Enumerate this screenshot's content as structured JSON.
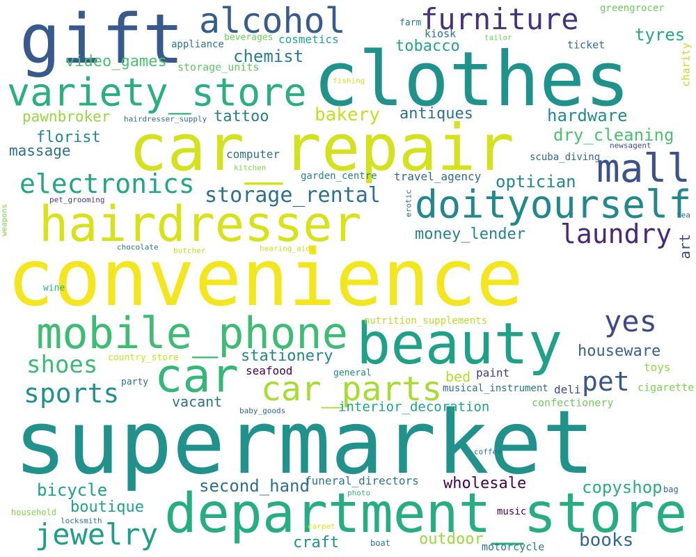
{
  "words": [
    {
      "text": "supermarket",
      "color": "#21918c"
    },
    {
      "text": "convenience",
      "color": "#f4e61e"
    },
    {
      "text": "clothes",
      "color": "#1f938b"
    },
    {
      "text": "car_repair",
      "color": "#d3e21c"
    },
    {
      "text": "gift",
      "color": "#38598c"
    },
    {
      "text": "beauty",
      "color": "#1fa187"
    },
    {
      "text": "department_store",
      "color": "#26ad81"
    },
    {
      "text": "hairdresser",
      "color": "#d8e219"
    },
    {
      "text": "car",
      "color": "#35b779"
    },
    {
      "text": "mobile_phone",
      "color": "#3ebc74"
    },
    {
      "text": "variety_store",
      "color": "#2ab07f"
    },
    {
      "text": "doityourself",
      "color": "#23888e"
    },
    {
      "text": "car_parts",
      "color": "#a8db34"
    },
    {
      "text": "mall",
      "color": "#3b528b"
    },
    {
      "text": "alcohol",
      "color": "#365c8d"
    },
    {
      "text": "electronics",
      "color": "#22a785"
    },
    {
      "text": "furniture",
      "color": "#46337e"
    },
    {
      "text": "jewelry",
      "color": "#1f9e89"
    },
    {
      "text": "yes",
      "color": "#3e4989"
    },
    {
      "text": "pet",
      "color": "#39568c"
    },
    {
      "text": "laundry",
      "color": "#482878"
    },
    {
      "text": "sports",
      "color": "#21918c"
    },
    {
      "text": "shoes",
      "color": "#3bbb75"
    },
    {
      "text": "storage_rental",
      "color": "#2c728e"
    },
    {
      "text": "second_hand",
      "color": "#2d718e"
    },
    {
      "text": "books",
      "color": "#31688e"
    },
    {
      "text": "bicycle",
      "color": "#1f9e89"
    },
    {
      "text": "hardware",
      "color": "#228c8d"
    },
    {
      "text": "dry_cleaning",
      "color": "#4ac16d"
    },
    {
      "text": "optician",
      "color": "#24868e"
    },
    {
      "text": "copyshop",
      "color": "#29af7f"
    },
    {
      "text": "chemist",
      "color": "#287d8e"
    },
    {
      "text": "bakery",
      "color": "#c2df23"
    },
    {
      "text": "boutique",
      "color": "#1fa287"
    },
    {
      "text": "craft",
      "color": "#21908d"
    },
    {
      "text": "outdoor",
      "color": "#9bd93c"
    },
    {
      "text": "tyres",
      "color": "#22a884"
    },
    {
      "text": "tobacco",
      "color": "#22a785"
    },
    {
      "text": "wholesale",
      "color": "#440154"
    },
    {
      "text": "stationery",
      "color": "#25848e"
    },
    {
      "text": "houseware",
      "color": "#33638d"
    },
    {
      "text": "interior_decoration",
      "color": "#20a486"
    },
    {
      "text": "antiques",
      "color": "#2c718e"
    },
    {
      "text": "tattoo",
      "color": "#297a8e"
    },
    {
      "text": "money_lender",
      "color": "#26828e"
    },
    {
      "text": "florist",
      "color": "#23898e"
    },
    {
      "text": "video_games",
      "color": "#4ac16d"
    },
    {
      "text": "pawnbroker",
      "color": "#95d840"
    },
    {
      "text": "massage",
      "color": "#2c728e"
    },
    {
      "text": "vacant",
      "color": "#2d718e"
    },
    {
      "text": "bed",
      "color": "#b5de2b"
    },
    {
      "text": "art",
      "color": "#3e4989"
    },
    {
      "text": "funeral_directors",
      "color": "#2a788e"
    },
    {
      "text": "nutrition_supplements",
      "color": "#b8de29"
    },
    {
      "text": "cosmetics",
      "color": "#22a785"
    },
    {
      "text": "garden_centre",
      "color": "#25838e"
    },
    {
      "text": "travel_agency",
      "color": "#31688e"
    },
    {
      "text": "computer",
      "color": "#2d708e"
    },
    {
      "text": "seafood",
      "color": "#440154"
    },
    {
      "text": "storage_units",
      "color": "#5ec962"
    },
    {
      "text": "confectionery",
      "color": "#6ccd5a"
    },
    {
      "text": "musical_instrument",
      "color": "#2d708e"
    },
    {
      "text": "scuba_diving",
      "color": "#30698e"
    },
    {
      "text": "paint",
      "color": "#443983"
    },
    {
      "text": "deli",
      "color": "#3e4989"
    },
    {
      "text": "cigarette",
      "color": "#7ad151"
    },
    {
      "text": "toys",
      "color": "#8fd744"
    },
    {
      "text": "greengrocer",
      "color": "#6ccd5a"
    },
    {
      "text": "charity",
      "color": "#bddf26"
    },
    {
      "text": "ticket",
      "color": "#2c728e"
    },
    {
      "text": "kiosk",
      "color": "#2c728e"
    },
    {
      "text": "appliance",
      "color": "#2a788e"
    },
    {
      "text": "music",
      "color": "#440154"
    },
    {
      "text": "motorcycle",
      "color": "#2a788e"
    },
    {
      "text": "general",
      "color": "#24868e"
    },
    {
      "text": "country_store",
      "color": "#cae11f"
    },
    {
      "text": "beverages",
      "color": "#6ccd5a"
    },
    {
      "text": "farm",
      "color": "#2a768e"
    },
    {
      "text": "party",
      "color": "#2c728e"
    },
    {
      "text": "hairdresser_supply",
      "color": "#2e6f8e"
    },
    {
      "text": "newsagent",
      "color": "#3e4989"
    },
    {
      "text": "kitchen",
      "color": "#84d44b"
    },
    {
      "text": "pet_grooming",
      "color": "#443983"
    },
    {
      "text": "erotic",
      "color": "#31688e"
    },
    {
      "text": "weapons",
      "color": "#7fd34e"
    },
    {
      "text": "chocolate",
      "color": "#2a788e"
    },
    {
      "text": "butcher",
      "color": "#bddf26"
    },
    {
      "text": "hearing_aids",
      "color": "#cae11f"
    },
    {
      "text": "wine",
      "color": "#2ab07f"
    },
    {
      "text": "fishing",
      "color": "#cae11f"
    },
    {
      "text": "tailor",
      "color": "#6ccd5a"
    },
    {
      "text": "coffee",
      "color": "#2c728e"
    },
    {
      "text": "baby_goods",
      "color": "#31688e"
    },
    {
      "text": "photo",
      "color": "#35b779"
    },
    {
      "text": "bag",
      "color": "#31688e"
    },
    {
      "text": "household",
      "color": "#84d44b"
    },
    {
      "text": "locksmith",
      "color": "#2c728e"
    },
    {
      "text": "carpet",
      "color": "#dde318"
    },
    {
      "text": "boat",
      "color": "#2a788e"
    },
    {
      "text": "tea",
      "color": "#2e6f8e"
    }
  ]
}
